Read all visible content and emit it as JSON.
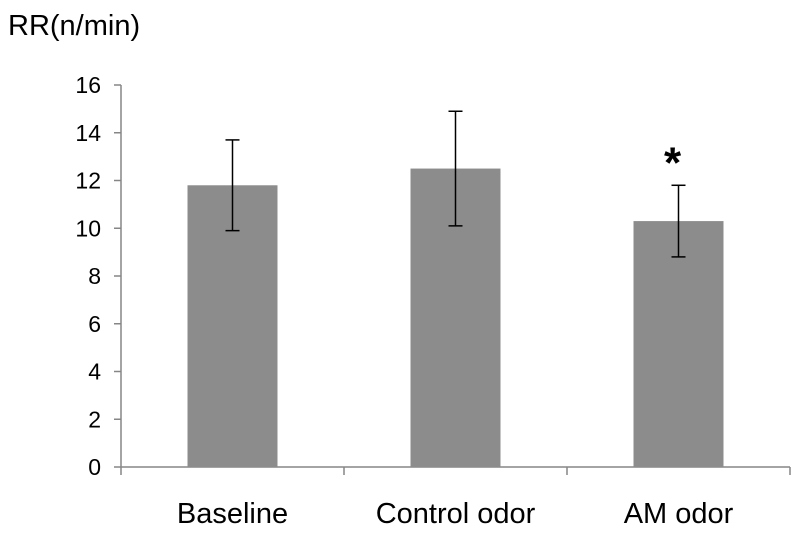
{
  "chart_data": {
    "type": "bar",
    "ylabel": "RR(n/min)",
    "xlabel": "",
    "title": "",
    "categories": [
      "Baseline",
      "Control odor",
      "AM odor"
    ],
    "values": [
      11.8,
      12.5,
      10.3
    ],
    "error_upper": [
      13.7,
      14.9,
      11.8
    ],
    "error_lower": [
      9.9,
      10.1,
      8.8
    ],
    "annotations": [
      "",
      "",
      "*"
    ],
    "ylim": [
      0,
      16
    ],
    "yticks": [
      0,
      2,
      4,
      6,
      8,
      10,
      12,
      14,
      16
    ],
    "grid": false,
    "legend": "none",
    "bar_color": "#8c8c8c"
  }
}
